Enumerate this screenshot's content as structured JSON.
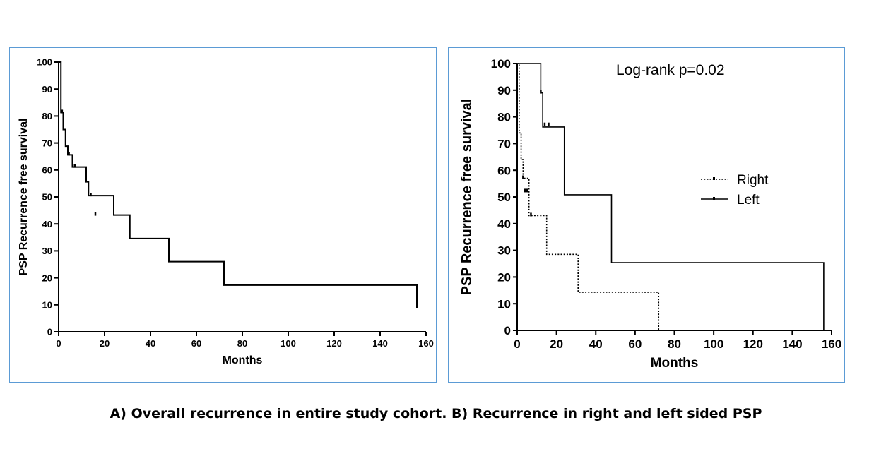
{
  "caption": "A) Overall recurrence in entire study cohort. B) Recurrence in right and left sided PSP",
  "chart_data": [
    {
      "type": "line",
      "step": true,
      "title": "",
      "xlabel": "Months",
      "ylabel": "PSP Recurrence free survival",
      "xlim": [
        0,
        160
      ],
      "ylim": [
        0,
        100
      ],
      "xticks": [
        0,
        20,
        40,
        60,
        80,
        100,
        120,
        140,
        160
      ],
      "yticks": [
        0,
        10,
        20,
        30,
        40,
        50,
        60,
        70,
        80,
        90,
        100
      ],
      "grid": false,
      "series": [
        {
          "x": [
            0,
            1,
            2,
            3,
            4,
            6,
            12,
            13,
            24,
            31,
            48,
            72,
            156
          ],
          "y": [
            100,
            81.3,
            75,
            68.8,
            65.6,
            61.1,
            55.6,
            50.5,
            43.3,
            34.6,
            26,
            17.3,
            8.7
          ],
          "censored": [
            [
              1.5,
              81.3
            ],
            [
              4.5,
              65.6
            ],
            [
              7,
              61.1
            ],
            [
              14,
              50.5
            ],
            [
              16,
              43.3
            ]
          ]
        }
      ]
    },
    {
      "type": "line",
      "step": true,
      "title": "",
      "annotation": "Log-rank p=0.02",
      "xlabel": "Months",
      "ylabel": "PSP Recurrence free survival",
      "xlim": [
        0,
        160
      ],
      "ylim": [
        0,
        100
      ],
      "xticks": [
        0,
        20,
        40,
        60,
        80,
        100,
        120,
        140,
        160
      ],
      "yticks": [
        0,
        10,
        20,
        30,
        40,
        50,
        60,
        70,
        80,
        90,
        100
      ],
      "grid": false,
      "legend": "center-right",
      "series": [
        {
          "name": "Right",
          "style": "dotted",
          "x": [
            0,
            1,
            2,
            3,
            6,
            15,
            31,
            72
          ],
          "y": [
            100,
            74,
            64,
            57,
            43,
            28.5,
            14.3,
            0
          ],
          "censored": [
            [
              3,
              57
            ],
            [
              4,
              52
            ],
            [
              5,
              52
            ],
            [
              7,
              43
            ]
          ]
        },
        {
          "name": "Left",
          "style": "solid",
          "x": [
            0,
            12,
            13,
            24,
            48,
            156
          ],
          "y": [
            100,
            89,
            76.2,
            50.8,
            25.4,
            0
          ],
          "censored": [
            [
              12,
              89
            ],
            [
              14,
              76.8
            ],
            [
              16,
              76.8
            ]
          ]
        }
      ]
    }
  ]
}
